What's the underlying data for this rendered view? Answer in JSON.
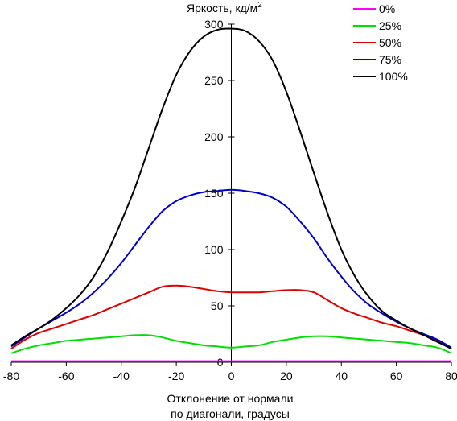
{
  "chart_data": {
    "type": "line",
    "ylabel": "Яркость, кд/м",
    "ylabel_superscript": "2",
    "xlabel_line1": "Отклонение от нормали",
    "xlabel_line2": "по диагонали, градусы",
    "xlim": [
      -80,
      80
    ],
    "ylim": [
      0,
      300
    ],
    "xticks": [
      -80,
      -60,
      -40,
      -20,
      0,
      20,
      40,
      60,
      80
    ],
    "yticks": [
      0,
      50,
      100,
      150,
      200,
      250,
      300
    ],
    "grid": false,
    "legend_position": "top-right",
    "series": [
      {
        "name": "0%",
        "color": "#ff00ff",
        "x": [
          -80,
          -60,
          -40,
          -20,
          0,
          20,
          40,
          60,
          80
        ],
        "y": [
          1,
          1,
          1,
          1,
          1,
          1,
          1,
          1,
          1
        ]
      },
      {
        "name": "25%",
        "color": "#00dd00",
        "x": [
          -80,
          -75,
          -70,
          -65,
          -60,
          -55,
          -50,
          -45,
          -40,
          -35,
          -30,
          -25,
          -20,
          -15,
          -10,
          -5,
          0,
          5,
          10,
          15,
          20,
          25,
          30,
          35,
          40,
          45,
          50,
          55,
          60,
          65,
          70,
          75,
          80
        ],
        "y": [
          8,
          12,
          15,
          17,
          19,
          20,
          21,
          22,
          23,
          24,
          24,
          22,
          19,
          17,
          15,
          14,
          13,
          14,
          15,
          18,
          20,
          22,
          23,
          23,
          22,
          21,
          20,
          19,
          18,
          17,
          15,
          13,
          8
        ]
      },
      {
        "name": "50%",
        "color": "#dd0000",
        "x": [
          -80,
          -75,
          -70,
          -65,
          -60,
          -55,
          -50,
          -45,
          -40,
          -35,
          -30,
          -25,
          -20,
          -15,
          -10,
          -5,
          0,
          5,
          10,
          15,
          20,
          25,
          30,
          35,
          40,
          45,
          50,
          55,
          60,
          65,
          70,
          75,
          80
        ],
        "y": [
          12,
          20,
          26,
          30,
          34,
          38,
          42,
          47,
          52,
          57,
          62,
          67,
          68,
          67,
          65,
          63,
          62,
          62,
          62,
          63,
          64,
          64,
          62,
          55,
          48,
          43,
          39,
          35,
          32,
          28,
          24,
          19,
          12
        ]
      },
      {
        "name": "75%",
        "color": "#0000cc",
        "x": [
          -80,
          -75,
          -70,
          -65,
          -60,
          -55,
          -50,
          -45,
          -40,
          -35,
          -30,
          -25,
          -20,
          -15,
          -10,
          -5,
          0,
          5,
          10,
          15,
          20,
          25,
          30,
          35,
          40,
          45,
          50,
          55,
          60,
          65,
          70,
          75,
          80
        ],
        "y": [
          14,
          22,
          30,
          37,
          44,
          52,
          62,
          74,
          88,
          104,
          120,
          134,
          143,
          148,
          151,
          152,
          153,
          152,
          150,
          146,
          138,
          125,
          110,
          92,
          76,
          62,
          51,
          43,
          36,
          30,
          25,
          20,
          13
        ]
      },
      {
        "name": "100%",
        "color": "#000000",
        "x": [
          -80,
          -75,
          -70,
          -65,
          -60,
          -55,
          -50,
          -45,
          -40,
          -35,
          -30,
          -25,
          -20,
          -15,
          -10,
          -5,
          0,
          5,
          10,
          15,
          20,
          25,
          30,
          35,
          40,
          45,
          50,
          55,
          60,
          65,
          70,
          75,
          80
        ],
        "y": [
          15,
          23,
          30,
          38,
          48,
          60,
          76,
          98,
          125,
          155,
          190,
          225,
          255,
          276,
          289,
          295,
          296,
          294,
          285,
          268,
          240,
          205,
          168,
          132,
          100,
          76,
          58,
          45,
          37,
          30,
          24,
          18,
          12
        ]
      }
    ]
  }
}
